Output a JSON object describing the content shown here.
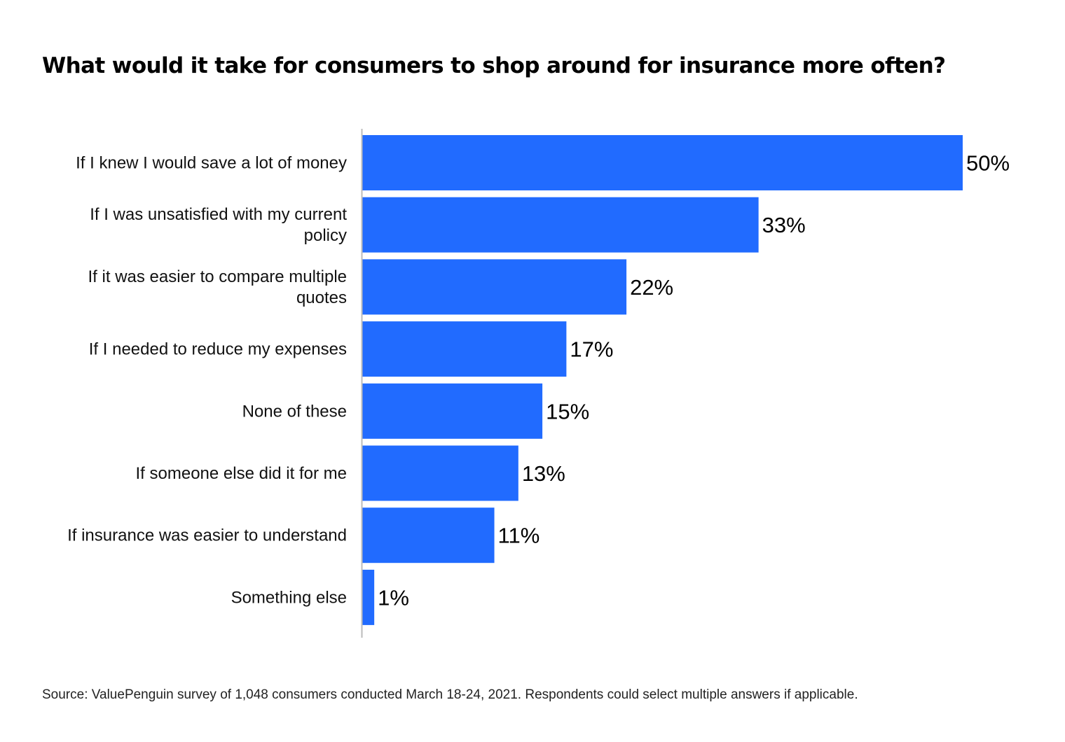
{
  "chart_data": {
    "type": "bar",
    "orientation": "horizontal",
    "title": "What would it take for consumers to shop around for insurance more often?",
    "categories": [
      "If I knew I would save a lot of money",
      "If I was unsatisfied with my current policy",
      "If it was easier to compare multiple quotes",
      "If I needed to reduce my expenses",
      "None of these",
      "If someone else did it for me",
      "If insurance was easier to understand",
      "Something else"
    ],
    "category_lines": [
      [
        "If I knew I would save a lot of money"
      ],
      [
        "If I was unsatisfied with my current",
        "policy"
      ],
      [
        "If it was easier to compare multiple",
        "quotes"
      ],
      [
        "If I needed to reduce my expenses"
      ],
      [
        "None of these"
      ],
      [
        "If someone else did it for me"
      ],
      [
        "If insurance was easier to understand"
      ],
      [
        "Something else"
      ]
    ],
    "values": [
      50,
      33,
      22,
      17,
      15,
      13,
      11,
      1
    ],
    "value_labels": [
      "50%",
      "33%",
      "22%",
      "17%",
      "15%",
      "13%",
      "11%",
      "1%"
    ],
    "unit": "%",
    "xlim": [
      0,
      50
    ],
    "bar_color": "#216BFF",
    "axis_color": "#BBBBBB",
    "grid": false,
    "legend": "none",
    "source": "Source: ValuePenguin survey of 1,048 consumers conducted March 18-24, 2021. Respondents could select multiple answers if applicable."
  }
}
